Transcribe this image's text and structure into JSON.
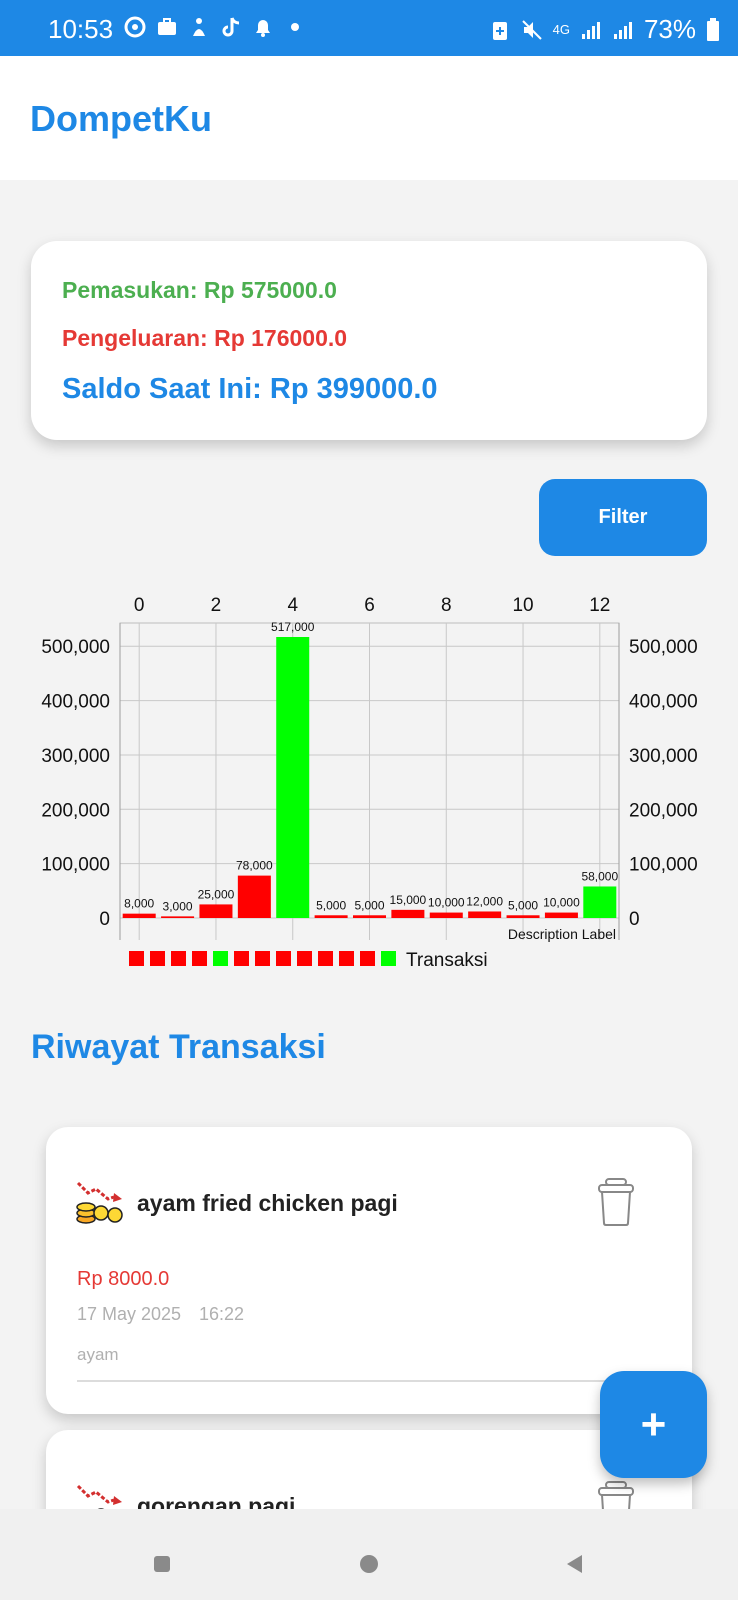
{
  "status_bar": {
    "time": "10:53",
    "network": "4G",
    "battery": "73%"
  },
  "app": {
    "title": "DompetKu"
  },
  "summary": {
    "income": "Pemasukan: Rp 575000.0",
    "expense": "Pengeluaran: Rp 176000.0",
    "balance": "Saldo Saat Ini: Rp 399000.0"
  },
  "filter_label": "Filter",
  "chart_data": {
    "type": "bar",
    "x": [
      0,
      1,
      2,
      3,
      4,
      5,
      6,
      7,
      8,
      9,
      10,
      11,
      12
    ],
    "values": [
      8000,
      3000,
      25000,
      78000,
      517000,
      5000,
      5000,
      15000,
      10000,
      12000,
      5000,
      10000,
      58000
    ],
    "value_labels": [
      "8,000",
      "3,000",
      "25,000",
      "78,000",
      "517,000",
      "5,000",
      "5,000",
      "15,000",
      "10,000",
      "12,000",
      "5,000",
      "10,000",
      "58,000"
    ],
    "bar_colors": [
      "#ff0000",
      "#ff0000",
      "#ff0000",
      "#ff0000",
      "#00ff00",
      "#ff0000",
      "#ff0000",
      "#ff0000",
      "#ff0000",
      "#ff0000",
      "#ff0000",
      "#ff0000",
      "#00ff00"
    ],
    "x_ticks": [
      "0",
      "2",
      "4",
      "6",
      "8",
      "10",
      "12"
    ],
    "x_tick_values": [
      0,
      2,
      4,
      6,
      8,
      10,
      12
    ],
    "y_ticks": [
      "0",
      "100,000",
      "200,000",
      "300,000",
      "400,000",
      "500,000"
    ],
    "y_tick_values": [
      0,
      100000,
      200000,
      300000,
      400000,
      500000
    ],
    "ylim": [
      0,
      517000
    ],
    "xlim": [
      -0.5,
      12.5
    ],
    "x_axis_position": "top",
    "y_axis": "both sides",
    "grid": true,
    "legend_label": "Transaksi",
    "legend_placement": "bottom-left",
    "description": "Description Label"
  },
  "section_title": "Riwayat Transaksi",
  "transactions": [
    {
      "name": "ayam fried chicken pagi",
      "amount": "Rp 8000.0",
      "date": "17 May 2025",
      "time": "16:22",
      "description": "ayam"
    },
    {
      "name": "gorengan pagi"
    }
  ],
  "fab_label": "+"
}
